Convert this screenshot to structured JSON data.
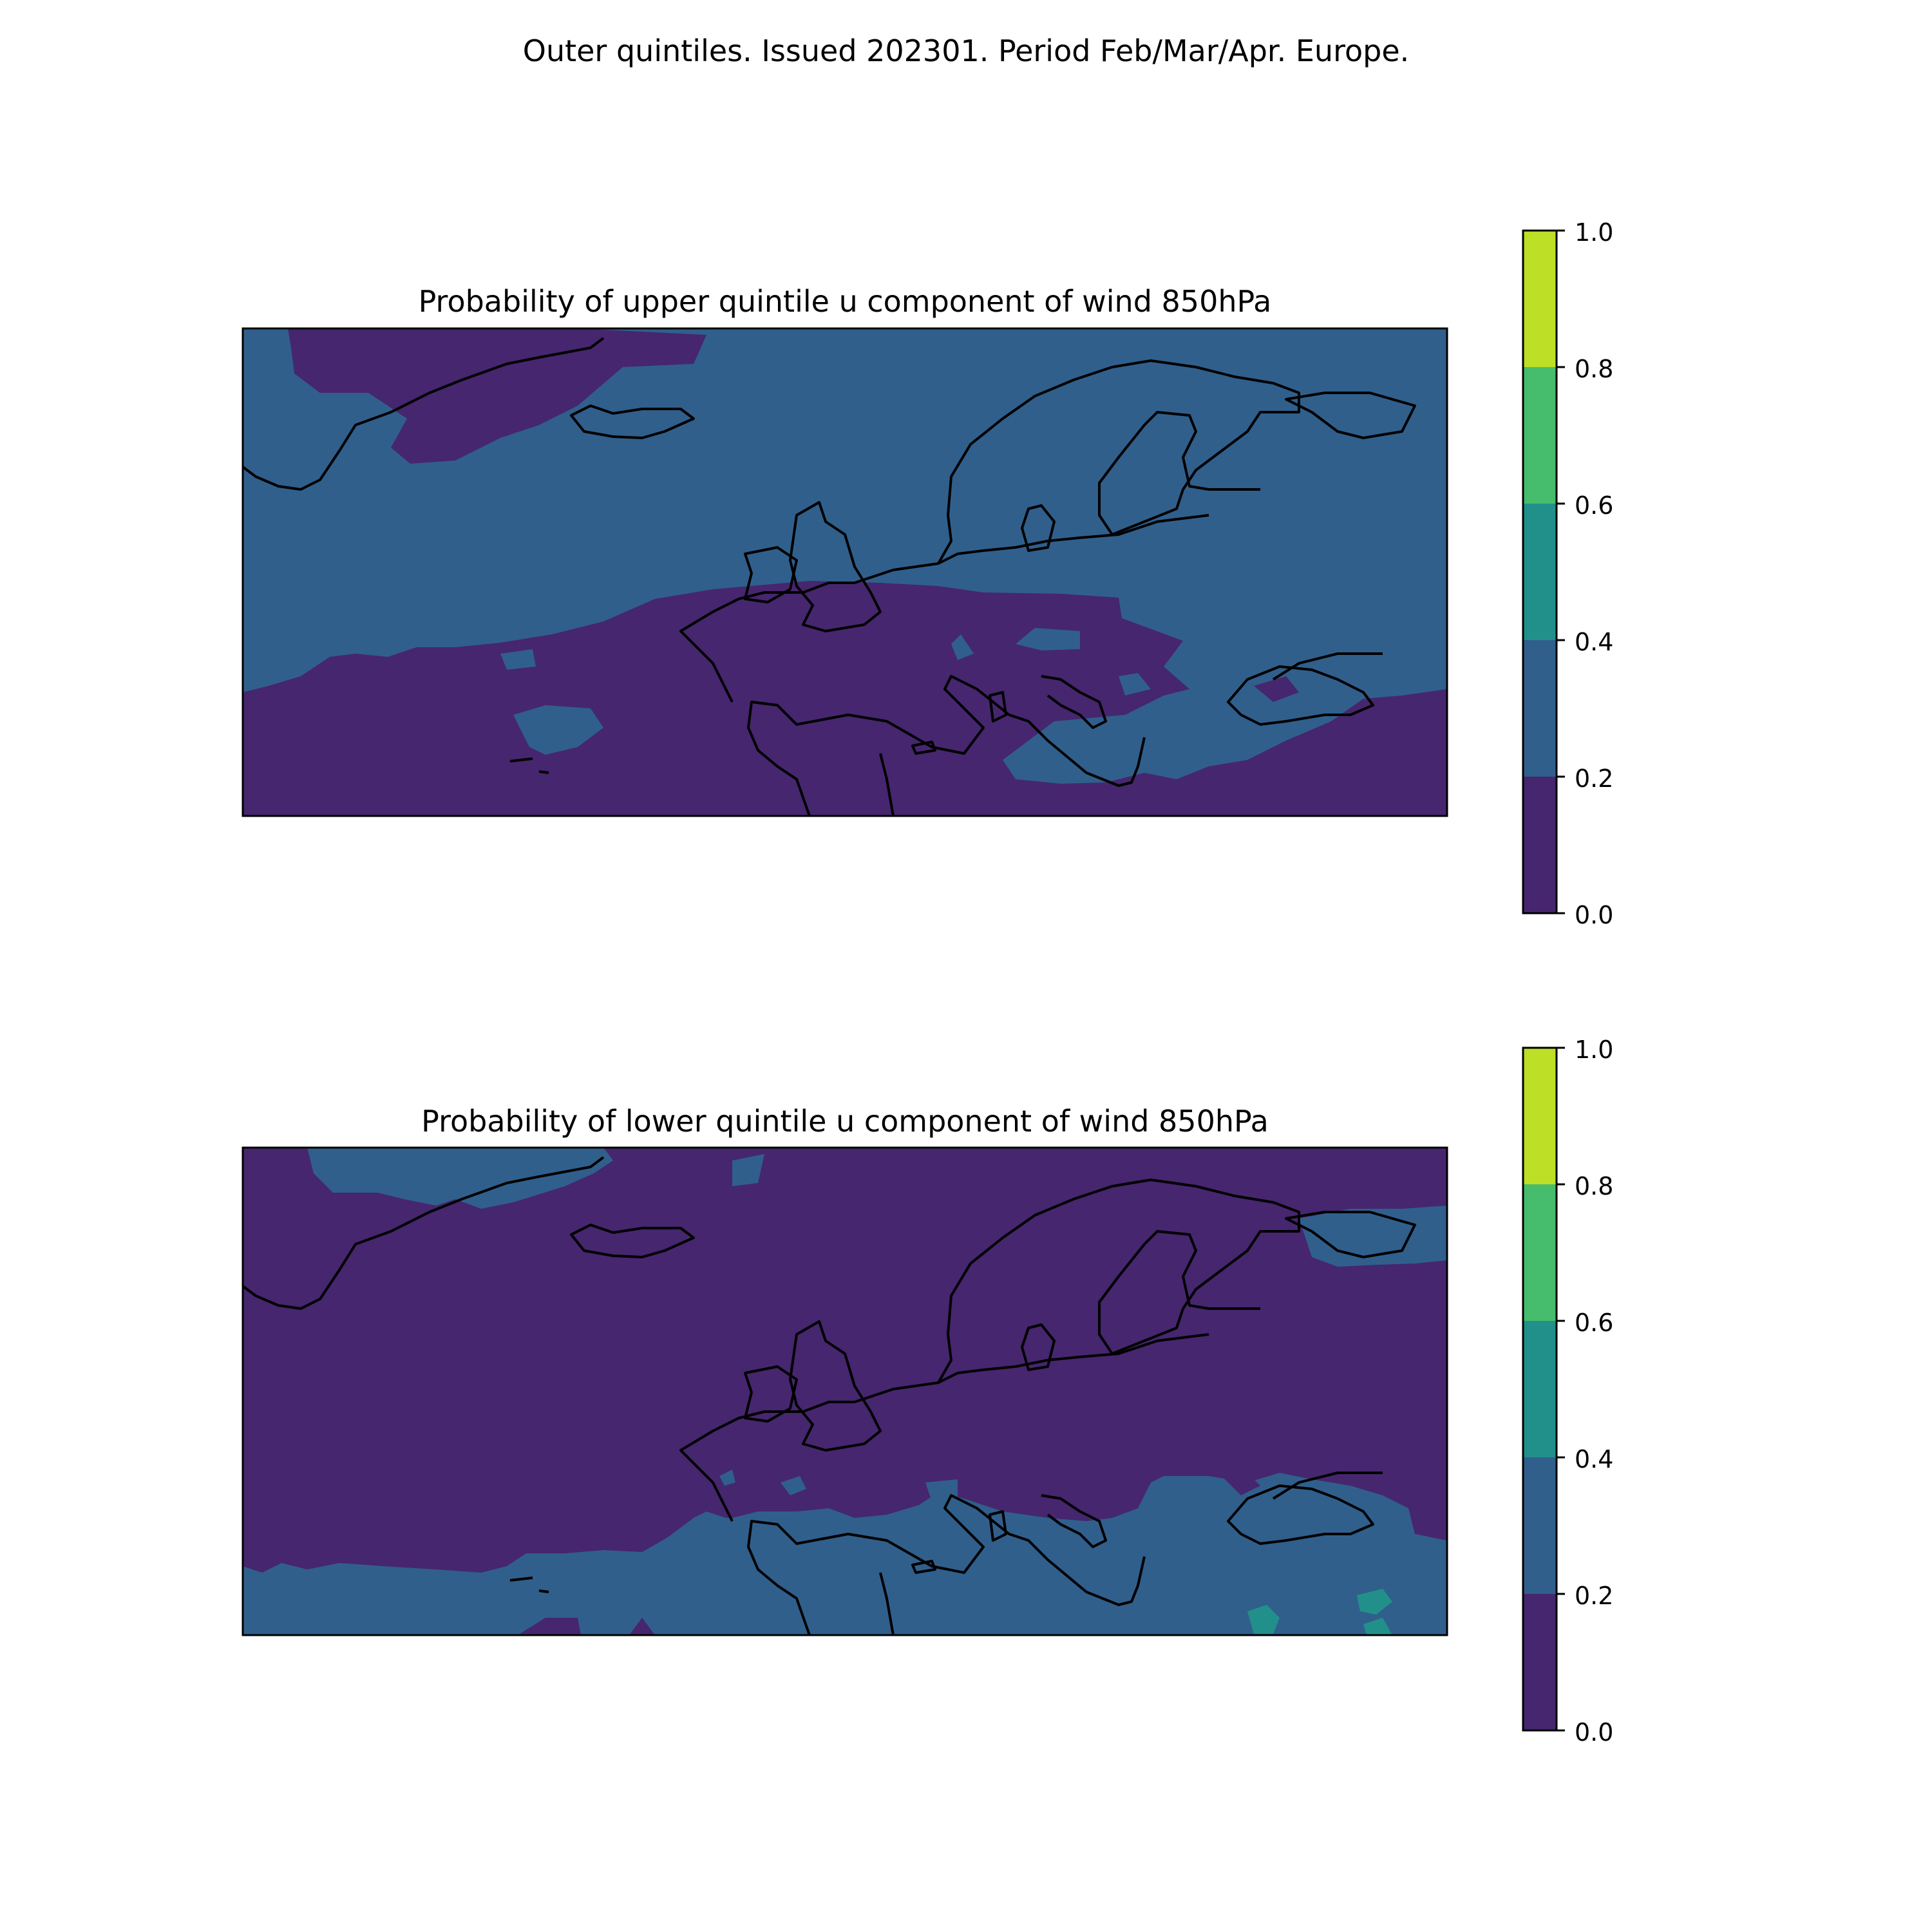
{
  "figure": {
    "suptitle": "Outer quintiles. Issued 202301. Period Feb/Mar/Apr. Europe."
  },
  "colormap": {
    "levels": [
      0.0,
      0.2,
      0.4,
      0.6,
      0.8,
      1.0
    ],
    "tick_labels": [
      "0.0",
      "0.2",
      "0.4",
      "0.6",
      "0.8",
      "1.0"
    ],
    "colors": [
      "#46266e",
      "#305f8c",
      "#22908a",
      "#46bd6c",
      "#bddf26"
    ]
  },
  "panels": [
    {
      "title": "Probability of upper quintile u component of wind 850hPa",
      "dominant_north_class": 1,
      "dominant_south_class": 0,
      "notes_classes_present": [
        0,
        1
      ]
    },
    {
      "title": "Probability of lower quintile u component of wind 850hPa",
      "dominant_north_class": 0,
      "dominant_south_class": 1,
      "notes_classes_present": [
        0,
        1,
        2
      ]
    }
  ]
}
